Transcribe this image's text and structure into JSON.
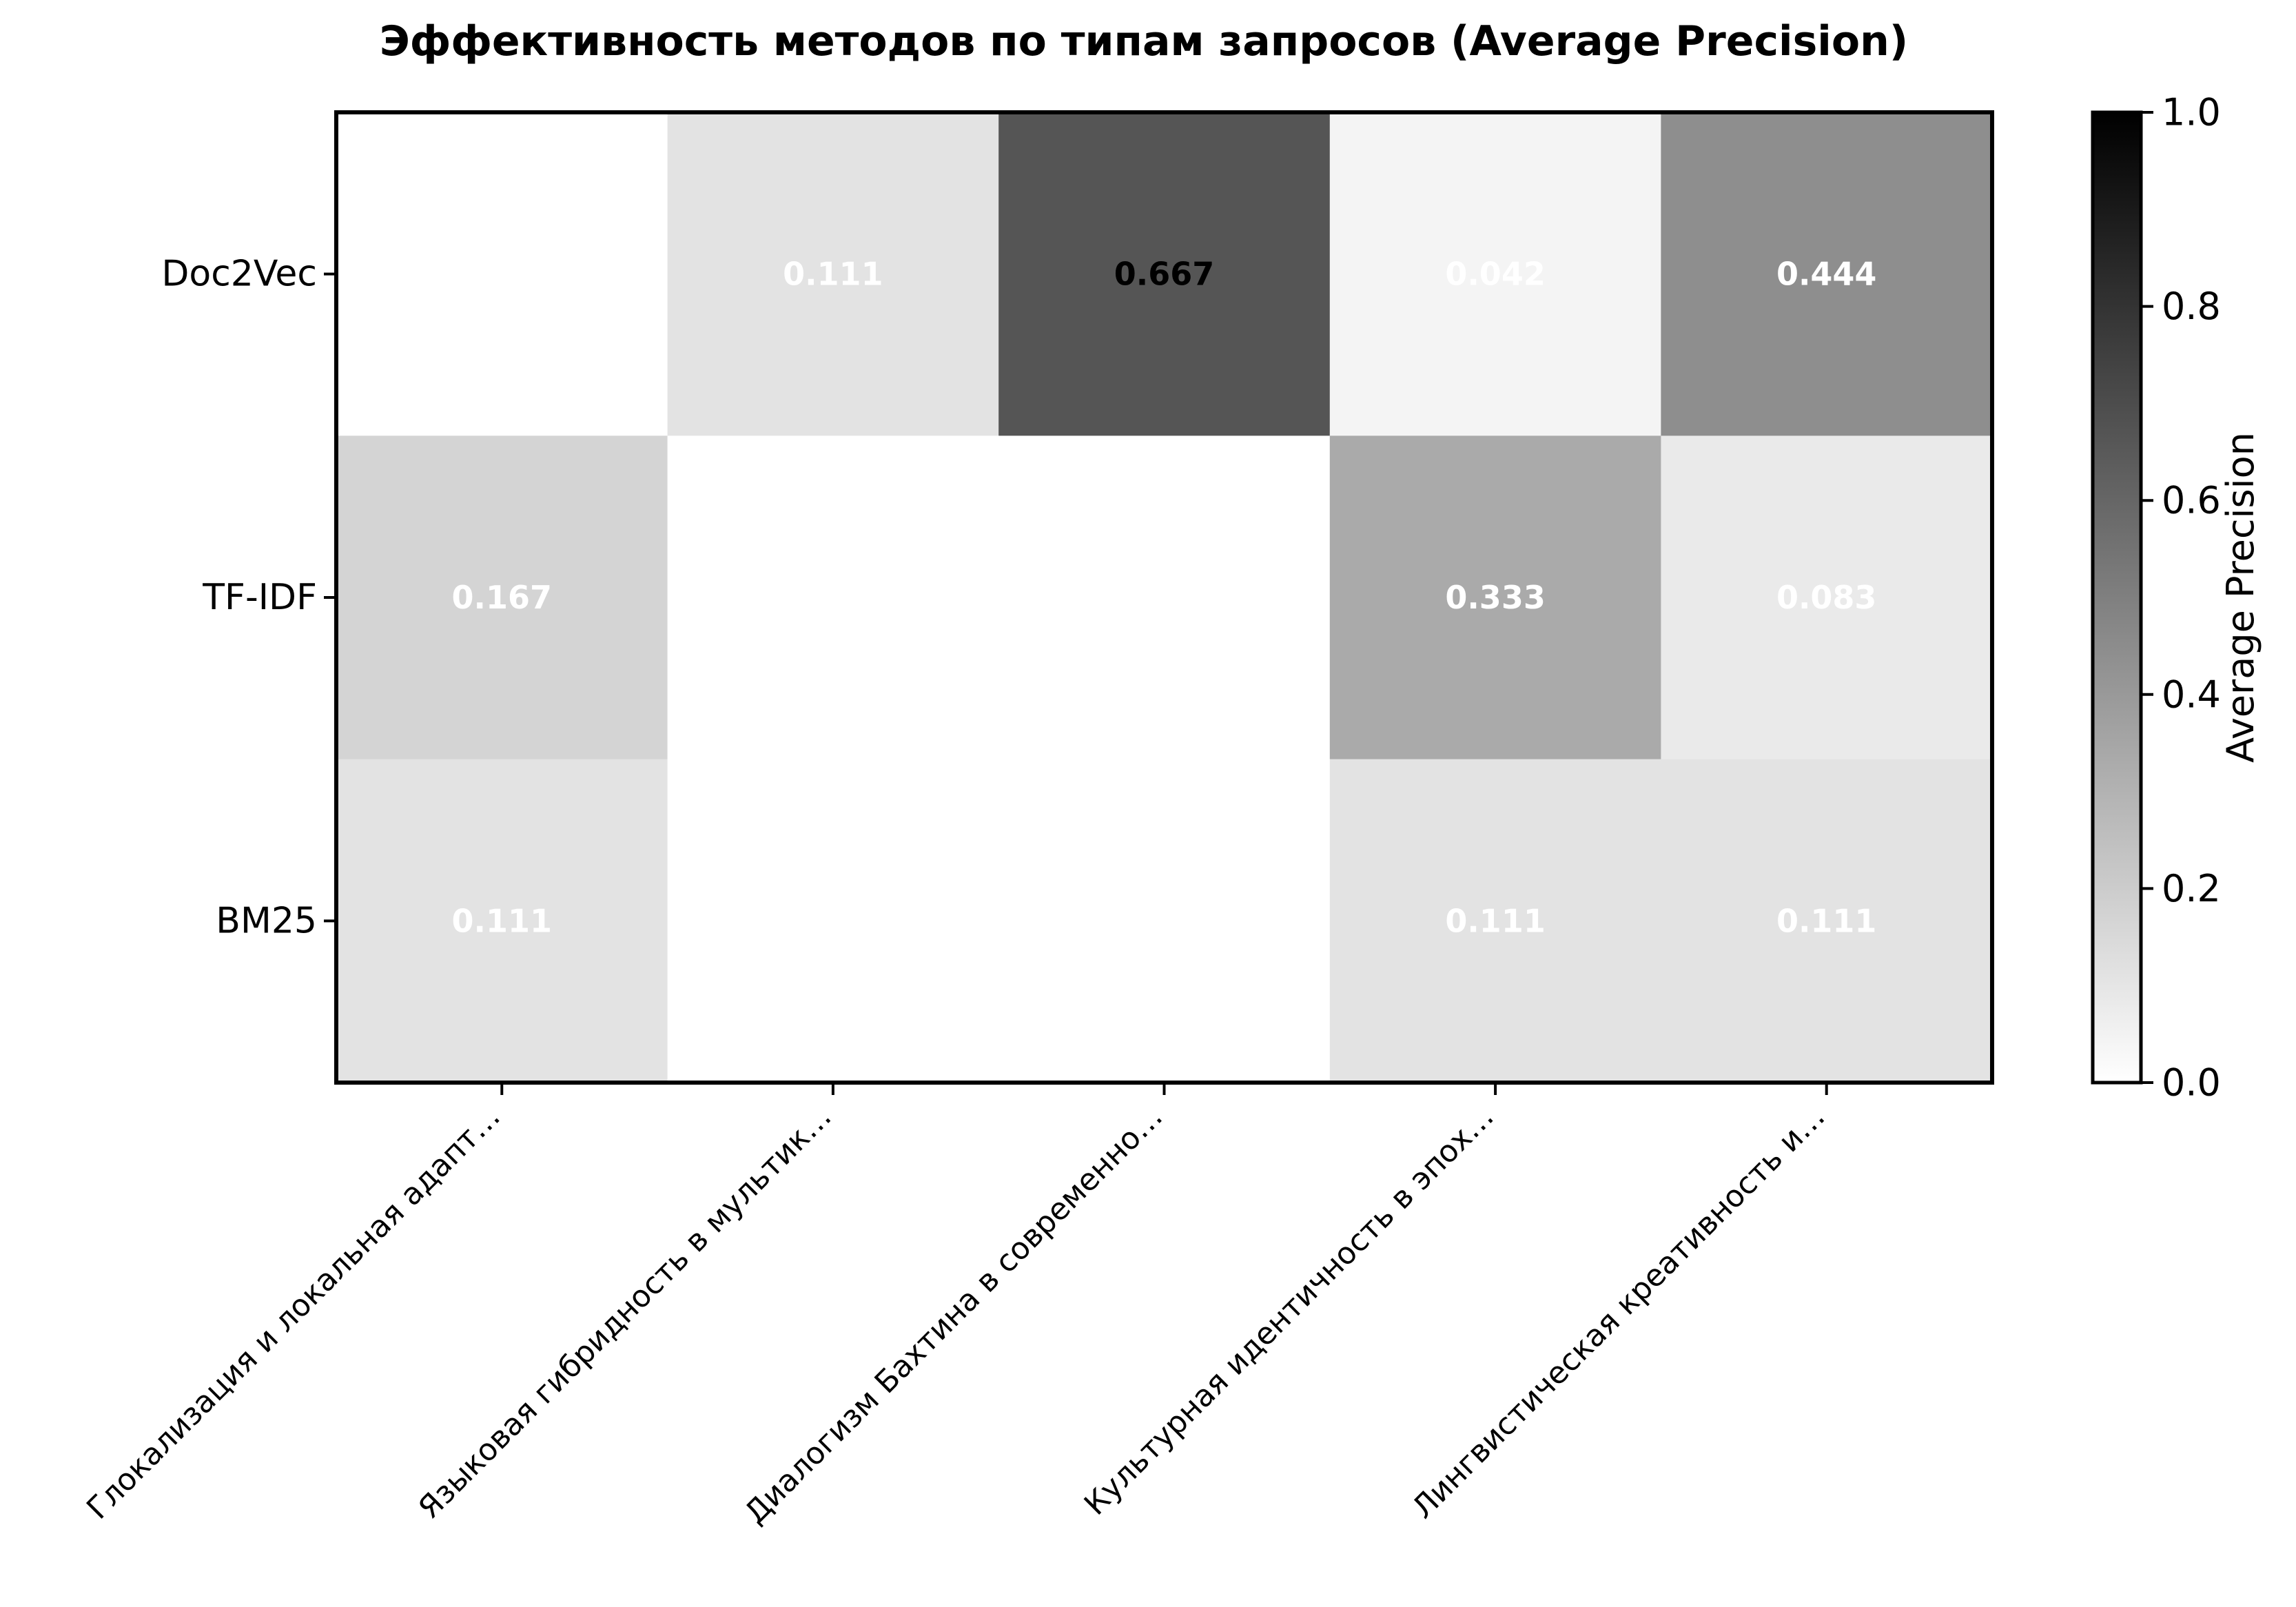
{
  "chart_data": {
    "type": "heatmap",
    "title": "Эффективность методов по типам запросов (Average Precision)",
    "rows": [
      "Doc2Vec",
      "TF-IDF",
      "BM25"
    ],
    "columns": [
      "Глокализация и локальная адапт…",
      "Языковая гибридность в мультик…",
      "Диалогизм Бахтина в современно…",
      "Культурная идентичность в эпох…",
      "Лингвистическая креативность и…"
    ],
    "values": [
      [
        0.0,
        0.111,
        0.667,
        0.042,
        0.444
      ],
      [
        0.167,
        0.0,
        0.0,
        0.333,
        0.083
      ],
      [
        0.111,
        0.0,
        0.0,
        0.111,
        0.111
      ]
    ],
    "cell_labels": [
      [
        "",
        "0.111",
        "0.667",
        "0.042",
        "0.444"
      ],
      [
        "0.167",
        "",
        "",
        "0.333",
        "0.083"
      ],
      [
        "0.111",
        "",
        "",
        "0.111",
        "0.111"
      ]
    ],
    "colormap": "greys",
    "colorbar": {
      "label": "Average Precision",
      "range": [
        0.0,
        1.0
      ],
      "ticks": [
        "0.0",
        "0.2",
        "0.4",
        "0.6",
        "0.8",
        "1.0"
      ]
    }
  }
}
